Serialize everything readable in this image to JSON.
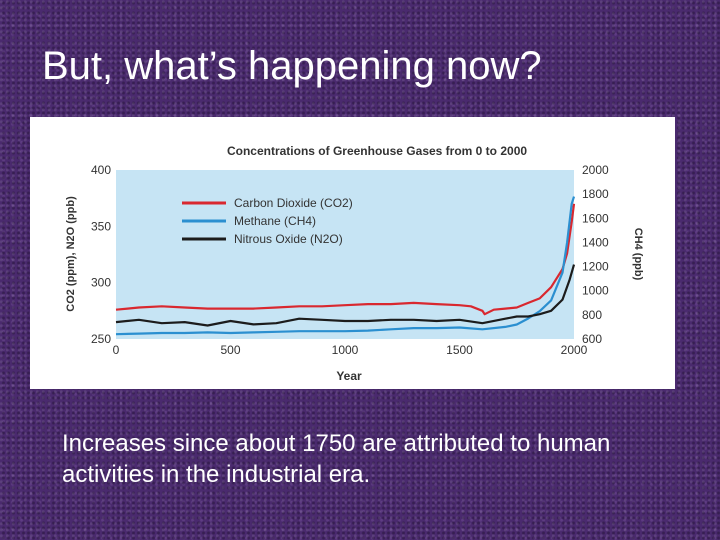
{
  "slide": {
    "title": "But, what’s happening now?",
    "caption": "Increases  since about 1750 are attributed to human activities in the industrial era."
  },
  "chart_data": {
    "type": "line",
    "title": "Concentrations of Greenhouse Gases from 0 to 2000",
    "xlabel": "Year",
    "ylabel_left": "CO2 (ppm), N2O (ppb)",
    "ylabel_right": "CH4 (ppb)",
    "xlim": [
      0,
      2000
    ],
    "ylim_left": [
      250,
      400
    ],
    "ylim_right": [
      600,
      2000
    ],
    "x_ticks": [
      "0",
      "500",
      "1000",
      "1500",
      "2000"
    ],
    "y_left_ticks": [
      "400",
      "350",
      "300",
      "250"
    ],
    "y_right_ticks": [
      "2000",
      "1800",
      "1600",
      "1400",
      "1200",
      "1000",
      "800",
      "600"
    ],
    "legend": [
      "Carbon Dioxide (CO2)",
      "Methane (CH4)",
      "Nitrous Oxide (N2O)"
    ],
    "colors": {
      "co2": "#d9282f",
      "ch4": "#2b8fd0",
      "n2o": "#1c1c1c",
      "plot_bg": "#c6e4f4"
    },
    "series": [
      {
        "name": "Carbon Dioxide (CO2)",
        "axis": "left",
        "color": "#d9282f",
        "x": [
          0,
          50,
          100,
          200,
          300,
          400,
          500,
          600,
          700,
          800,
          900,
          1000,
          1100,
          1200,
          1300,
          1400,
          1500,
          1550,
          1600,
          1610,
          1650,
          1700,
          1750,
          1800,
          1850,
          1900,
          1950,
          1970,
          1990,
          2000
        ],
        "values": [
          276,
          277,
          278,
          279,
          278,
          277,
          277,
          277,
          278,
          279,
          279,
          280,
          281,
          281,
          282,
          281,
          280,
          279,
          275,
          272,
          276,
          277,
          278,
          282,
          286,
          296,
          312,
          326,
          354,
          370
        ]
      },
      {
        "name": "Methane (CH4)",
        "axis": "right",
        "color": "#2b8fd0",
        "x": [
          0,
          100,
          200,
          300,
          400,
          500,
          600,
          700,
          800,
          900,
          1000,
          1100,
          1200,
          1300,
          1400,
          1500,
          1600,
          1700,
          1750,
          1800,
          1850,
          1900,
          1950,
          1970,
          1990,
          2000
        ],
        "values": [
          640,
          645,
          650,
          650,
          655,
          650,
          655,
          660,
          665,
          665,
          665,
          670,
          680,
          690,
          690,
          695,
          680,
          700,
          720,
          770,
          830,
          920,
          1150,
          1400,
          1720,
          1780
        ]
      },
      {
        "name": "Nitrous Oxide (N2O)",
        "axis": "left",
        "color": "#1c1c1c",
        "x": [
          0,
          100,
          200,
          300,
          400,
          500,
          600,
          700,
          800,
          900,
          1000,
          1100,
          1200,
          1300,
          1400,
          1500,
          1600,
          1700,
          1750,
          1800,
          1850,
          1900,
          1950,
          1980,
          2000
        ],
        "values": [
          265,
          267,
          264,
          265,
          262,
          266,
          263,
          264,
          268,
          267,
          266,
          266,
          267,
          267,
          266,
          267,
          264,
          268,
          270,
          270,
          272,
          275,
          285,
          302,
          316
        ]
      }
    ]
  }
}
